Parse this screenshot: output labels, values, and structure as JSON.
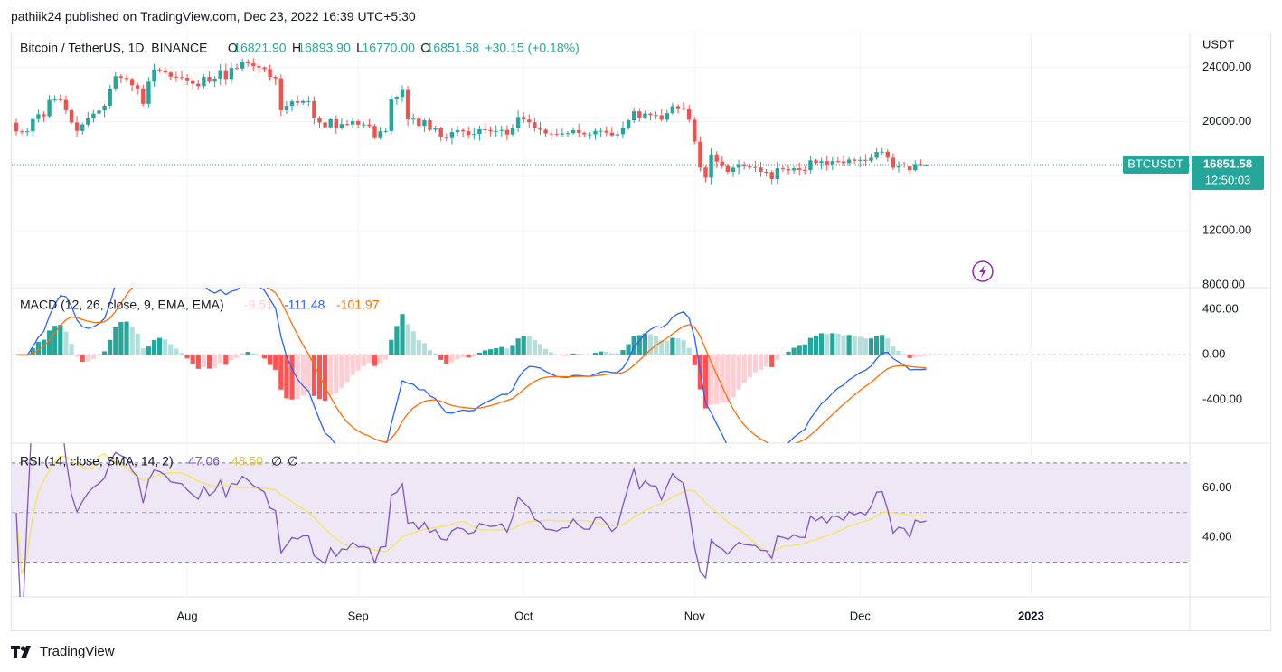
{
  "header": {
    "published_text": "pathiik24 published on TradingView.com, Dec 23, 2022 16:39 UTC+5:30"
  },
  "footer": {
    "brand": "TradingView"
  },
  "colors": {
    "up": "#26a69a",
    "down": "#ef5350",
    "macd_line": "#2962ff",
    "signal_line": "#ff6d00",
    "rsi_line": "#7e57c2",
    "rsi_ma": "#f7e35c",
    "rsi_band": "#ede7f6",
    "price_tag": "#26a69a",
    "grid": "#f0f3fa",
    "axis_text": "#131722"
  },
  "price_pane": {
    "legend_symbol": "Bitcoin / TetherUS, 1D, BINANCE",
    "legend_open_label": "O",
    "legend_open": "16821.90",
    "legend_high_label": "H",
    "legend_high": "16893.90",
    "legend_low_label": "L",
    "legend_low": "16770.00",
    "legend_close_label": "C",
    "legend_close": "16851.58",
    "legend_change": "+30.15 (+0.18%)",
    "currency": "USDT",
    "y_ticks": [
      "24000.00",
      "20000.00",
      "12000.00",
      "8000.00"
    ],
    "ticker_tag": "BTCUSDT",
    "last_price": "16851.58",
    "countdown": "12:50:03"
  },
  "macd_pane": {
    "legend_name": "MACD (12, 26, close, 9, EMA, EMA)",
    "legend_hist": "-9.51",
    "legend_macd": "-111.48",
    "legend_signal": "-101.97",
    "y_ticks": [
      "400.00",
      "0.00",
      "-400.00"
    ]
  },
  "rsi_pane": {
    "legend_name": "RSI (14, close, SMA, 14, 2)",
    "legend_rsi": "47.06",
    "legend_ma": "48.50",
    "legend_extra1": "∅",
    "legend_extra2": "∅",
    "y_ticks": [
      "60.00",
      "40.00"
    ]
  },
  "x_axis": {
    "ticks": [
      "Aug",
      "Sep",
      "Oct",
      "Nov",
      "Dec",
      "2023"
    ]
  },
  "chart_data": [
    {
      "type": "candlestick",
      "title": "Bitcoin / TetherUS, 1D, BINANCE",
      "ylabel": "USDT",
      "ylim": [
        7800,
        26500
      ],
      "start_date": "2022-07-01",
      "last": {
        "open": 16821.9,
        "high": 16893.9,
        "low": 16770.0,
        "close": 16851.58,
        "change": 30.15,
        "change_pct": 0.18
      },
      "close": [
        19300,
        19250,
        19300,
        20200,
        20550,
        20400,
        21600,
        21650,
        21600,
        20850,
        19950,
        19330,
        19800,
        20250,
        20600,
        20830,
        21180,
        22450,
        23350,
        23230,
        23150,
        22690,
        22460,
        21320,
        22950,
        23850,
        23780,
        23620,
        23320,
        23280,
        23240,
        22990,
        22800,
        22620,
        23300,
        22950,
        23180,
        23800,
        23150,
        23960,
        23920,
        24440,
        24300,
        24100,
        24000,
        23880,
        23300,
        23200,
        20850,
        21170,
        21500,
        21390,
        21520,
        21520,
        20250,
        19950,
        19600,
        20180,
        19550,
        19830,
        19800,
        20050,
        19790,
        19800,
        19700,
        18800,
        19300,
        19320,
        21650,
        21840,
        22400,
        20170,
        20230,
        19700,
        20110,
        19420,
        19560,
        18890,
        18800,
        19240,
        19390,
        19310,
        19040,
        19100,
        19450,
        19390,
        19310,
        19330,
        19400,
        19070,
        19560,
        20350,
        20160,
        19970,
        19540,
        19420,
        19140,
        19120,
        19070,
        19150,
        19160,
        19380,
        19190,
        19080,
        19080,
        19330,
        19340,
        19200,
        19000,
        19090,
        19550,
        20100,
        20770,
        20290,
        20600,
        20490,
        20480,
        20150,
        20630,
        21150,
        21000,
        20920,
        20150,
        18540,
        16640,
        15890,
        17600,
        17070,
        16810,
        16320,
        16620,
        16880,
        16710,
        16670,
        16640,
        16320,
        16300,
        15780,
        16590,
        16520,
        16420,
        16570,
        16450,
        16440,
        17160,
        16970,
        17100,
        16880,
        17110,
        17080,
        16960,
        17220,
        17130,
        17200,
        17130,
        17350,
        17780,
        17800,
        17360,
        16630,
        16780,
        16740,
        16440,
        16890,
        16820,
        16851.58
      ],
      "open_start": 19930,
      "rsi_rel_pct": 0.045,
      "macd_rel_pct": 0.038
    },
    {
      "type": "bar",
      "title": "MACD (12, 26, close, 9, EMA, EMA)",
      "ylim": [
        -780,
        590
      ],
      "derived_from": "close",
      "fast": 12,
      "slow": 26,
      "signal": 9
    },
    {
      "type": "line",
      "title": "RSI (14, close, SMA, 14, 2)",
      "ylim": [
        16,
        78
      ],
      "bands": [
        70,
        30
      ],
      "derived_from": "close",
      "period": 14,
      "ma_period": 14
    }
  ]
}
